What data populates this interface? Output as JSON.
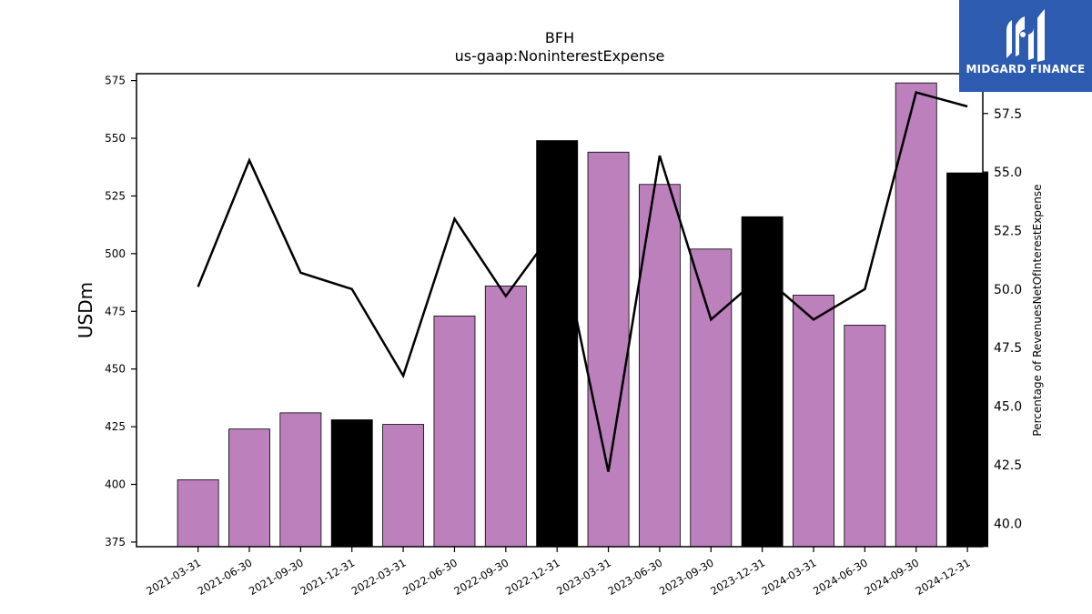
{
  "logo": {
    "text": "MIDGARD FINANCE",
    "icon": "midgard-logo-icon",
    "background": "#2d5bb0"
  },
  "chart_data": {
    "type": "bar",
    "title": "BFH",
    "subtitle": "us-gaap:NoninterestExpense",
    "ylabel": "USDm",
    "y2label": "Percentage of RevenuesNetOfInterestExpense",
    "categories": [
      "2021-03-31",
      "2021-06-30",
      "2021-09-30",
      "2021-12-31",
      "2022-03-31",
      "2022-06-30",
      "2022-09-30",
      "2022-12-31",
      "2023-03-31",
      "2023-06-30",
      "2023-09-30",
      "2023-12-31",
      "2024-03-31",
      "2024-06-30",
      "2024-09-30",
      "2024-12-31"
    ],
    "ylim": [
      373,
      578
    ],
    "y2lim": [
      39.0,
      59.2
    ],
    "yticks": [
      375,
      400,
      425,
      450,
      475,
      500,
      525,
      550,
      575
    ],
    "y2ticks": [
      "40.0",
      "42.5",
      "45.0",
      "47.5",
      "50.0",
      "52.5",
      "55.0",
      "57.5"
    ],
    "series": [
      {
        "type": "bar",
        "axis": "left",
        "values": [
          402,
          424,
          431,
          428,
          426,
          473,
          486,
          549,
          544,
          530,
          502,
          516,
          482,
          469,
          574,
          535
        ],
        "colors": [
          "#bc80bd",
          "#bc80bd",
          "#bc80bd",
          "#000000",
          "#bc80bd",
          "#bc80bd",
          "#bc80bd",
          "#000000",
          "#bc80bd",
          "#bc80bd",
          "#bc80bd",
          "#000000",
          "#bc80bd",
          "#bc80bd",
          "#bc80bd",
          "#000000"
        ]
      },
      {
        "type": "line",
        "axis": "right",
        "color": "#000000",
        "values": [
          50.1,
          55.5,
          50.7,
          50.0,
          46.3,
          53.0,
          49.7,
          52.7,
          42.2,
          55.7,
          48.7,
          50.6,
          48.7,
          50.0,
          58.4,
          57.8
        ]
      }
    ],
    "grid": false
  }
}
